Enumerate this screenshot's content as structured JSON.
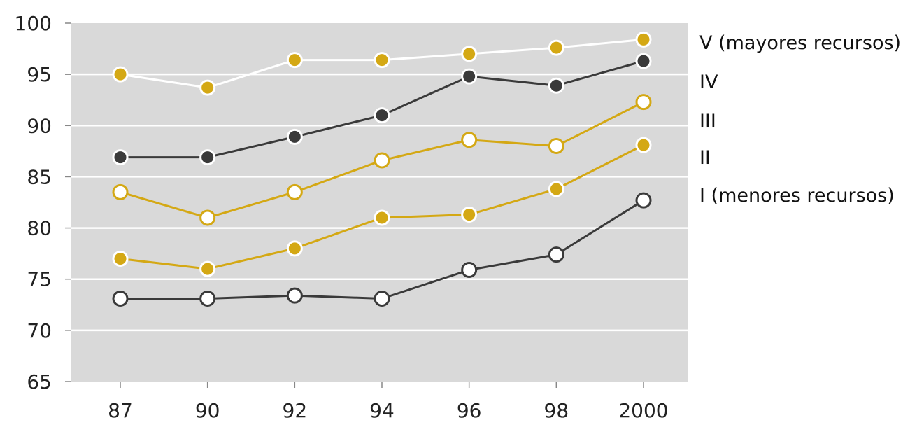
{
  "chart_data": {
    "type": "line",
    "categories": [
      "87",
      "90",
      "92",
      "94",
      "96",
      "98",
      "2000"
    ],
    "ylim": [
      65,
      100
    ],
    "yticks": [
      65,
      70,
      75,
      80,
      85,
      90,
      95,
      100
    ],
    "grid": true,
    "plot_background": "#d9d9d9",
    "gridline_color": "#ffffff",
    "legend_placement": "right",
    "series": [
      {
        "name": "V (mayores recursos)",
        "values": [
          95.0,
          93.7,
          96.4,
          96.4,
          97.0,
          97.6,
          98.4
        ],
        "line_color": "#ffffff",
        "marker_fill": "#d4a814",
        "marker_stroke": "#ffffff"
      },
      {
        "name": "IV",
        "values": [
          86.9,
          86.9,
          88.9,
          91.0,
          94.8,
          93.9,
          96.3
        ],
        "line_color": "#3a3a3a",
        "marker_fill": "#3a3a3a",
        "marker_stroke": "#ffffff"
      },
      {
        "name": "III",
        "values": [
          83.5,
          81.0,
          83.5,
          86.6,
          88.6,
          88.0,
          92.3
        ],
        "line_color": "#d4a814",
        "marker_fill": "#ffffff",
        "marker_stroke": "#d4a814"
      },
      {
        "name": "II",
        "values": [
          77.0,
          76.0,
          78.0,
          81.0,
          81.3,
          83.8,
          88.1
        ],
        "line_color": "#d4a814",
        "marker_fill": "#d4a814",
        "marker_stroke": "#ffffff"
      },
      {
        "name": "I (menores recursos)",
        "values": [
          73.1,
          73.1,
          73.4,
          73.1,
          75.9,
          77.4,
          82.7
        ],
        "line_color": "#3a3a3a",
        "marker_fill": "#ffffff",
        "marker_stroke": "#3a3a3a"
      }
    ]
  }
}
